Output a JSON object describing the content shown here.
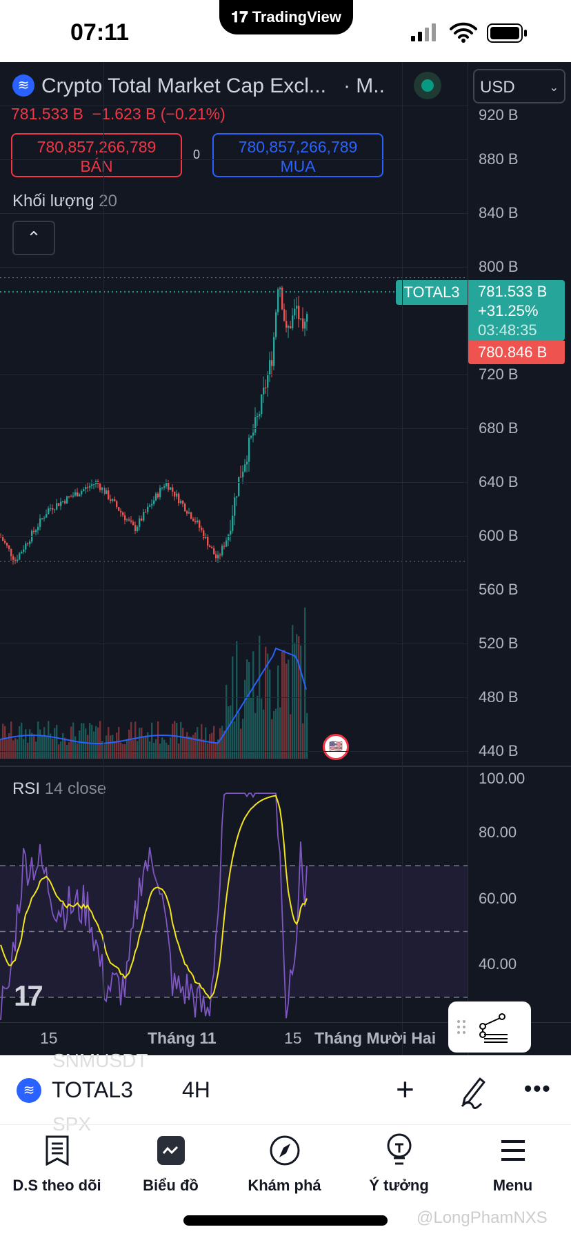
{
  "status_bar": {
    "time": "07:11",
    "island_label": "TradingView"
  },
  "header": {
    "title": "Crypto Total Market Cap Excl...",
    "exchange": "· M..",
    "currency": "USD"
  },
  "quote": {
    "last": "781.533 B",
    "change": "−1.623 B",
    "change_pct": "(−0.21%)"
  },
  "order": {
    "sell_price": "780,857,266,789",
    "sell_label": "BÁN",
    "spread": "0",
    "buy_price": "780,857,266,789",
    "buy_label": "MUA"
  },
  "volume_legend": {
    "label": "Khối lượng",
    "value": "20"
  },
  "price_axis": [
    "920 B",
    "880 B",
    "840 B",
    "800 B",
    "720 B",
    "680 B",
    "640 B",
    "600 B",
    "560 B",
    "520 B",
    "480 B",
    "440 B"
  ],
  "price_tag": {
    "symbol": "TOTAL3",
    "price": "781.533 B",
    "change": "+31.25%",
    "countdown": "03:48:35",
    "bid": "780.846 B"
  },
  "rsi": {
    "label": "RSI",
    "params": "14 close",
    "axis": [
      "100.00",
      "80.00",
      "60.00",
      "40.00"
    ]
  },
  "time_axis": [
    "15",
    "Tháng 11",
    "15",
    "Tháng Mười Hai"
  ],
  "colors": {
    "up": "#26a69a",
    "down": "#ef5350",
    "rsi": "#7e57c2",
    "rsi_ma": "#f5e51b",
    "volume_ma": "#2962ff"
  },
  "ghost_symbols": [
    "SNMUSDT",
    "SPX"
  ],
  "toolbar": {
    "symbol": "TOTAL3",
    "interval": "4H"
  },
  "tabs": [
    {
      "label": "D.S theo dõi"
    },
    {
      "label": "Biểu đồ"
    },
    {
      "label": "Khám phá"
    },
    {
      "label": "Ý tưởng"
    },
    {
      "label": "Menu"
    }
  ],
  "watermark": "@LongPhamNXS"
}
